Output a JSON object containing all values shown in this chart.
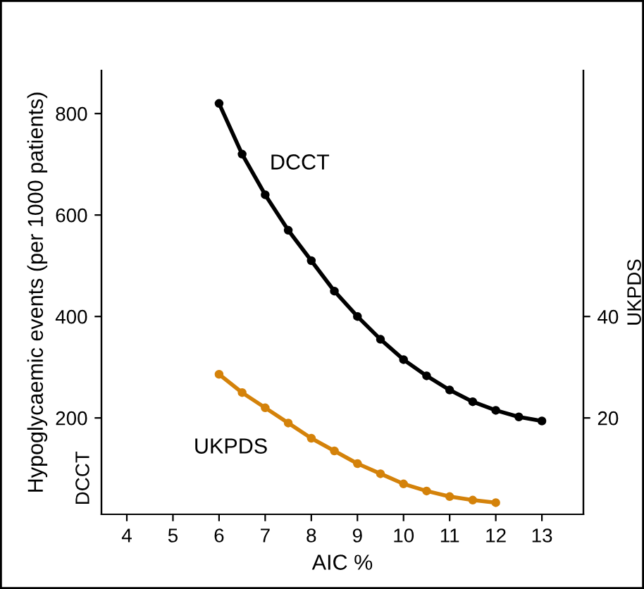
{
  "chart_data": {
    "type": "line",
    "xlabel": "AIC %",
    "ylabel": "Hypoglycaemic events (per 1000 patients)",
    "y2label": "UKPDS",
    "annotations": [
      "DCCT"
    ],
    "xlim": [
      3.45,
      13.9
    ],
    "xticks": [
      4,
      5,
      6,
      7,
      8,
      9,
      10,
      11,
      12,
      13
    ],
    "ylim": [
      10,
      885
    ],
    "yticks": [
      200,
      400,
      600,
      800
    ],
    "y2lim": [
      1,
      88.5
    ],
    "y2ticks": [
      20,
      40
    ],
    "marker": "circle",
    "grid": false,
    "legend": false,
    "series": [
      {
        "name": "DCCT",
        "color": "#000000",
        "x": [
          6,
          6.5,
          7,
          7.5,
          8,
          8.5,
          9,
          9.5,
          10,
          10.5,
          11,
          11.5,
          12,
          12.5,
          13
        ],
        "values": [
          820,
          720,
          640,
          570,
          510,
          450,
          400,
          355,
          315,
          283,
          255,
          232,
          215,
          202,
          194
        ]
      },
      {
        "name": "UKPDS",
        "color": "#d4820a",
        "axis": "y2",
        "x": [
          6,
          6.5,
          7,
          7.5,
          8,
          8.5,
          9,
          9.5,
          10,
          10.5,
          11,
          11.5,
          12
        ],
        "values": [
          28.6,
          25,
          22,
          19,
          16,
          13.5,
          11,
          9,
          7,
          5.6,
          4.5,
          3.8,
          3.3
        ]
      }
    ]
  }
}
